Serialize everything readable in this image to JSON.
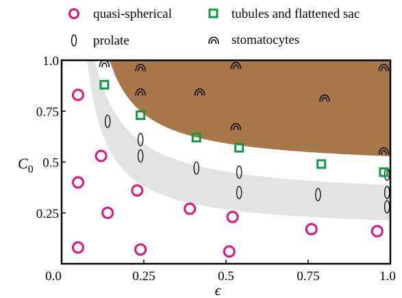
{
  "chart_data": {
    "type": "scatter",
    "xlabel": "ϵ",
    "ylabel": "C",
    "ylabel_subscript": "0",
    "xlim": [
      0.0,
      1.0
    ],
    "ylim": [
      0.0,
      1.0
    ],
    "x_ticks": [
      "0.0",
      "0.25",
      "0.5",
      "0.75",
      "1.0"
    ],
    "y_ticks": [
      "0.25",
      "0.5",
      "0.75",
      "1.0"
    ],
    "legend_placement": "top",
    "legend": {
      "quasi_spherical": "quasi-spherical",
      "prolate": "prolate",
      "tubules": "tubules and flattened sac",
      "stomatocytes": "stomatocytes"
    },
    "colors": {
      "quasi_spherical": "#e0117f",
      "tubules": "#119a3c",
      "stomatocyte_region": "#a8774a",
      "prolate_band": "#e3e3e3"
    },
    "series": [
      {
        "name": "quasi-spherical",
        "marker": "circle",
        "points": [
          [
            0.05,
            0.83
          ],
          [
            0.05,
            0.4
          ],
          [
            0.05,
            0.08
          ],
          [
            0.12,
            0.53
          ],
          [
            0.14,
            0.25
          ],
          [
            0.23,
            0.36
          ],
          [
            0.24,
            0.07
          ],
          [
            0.39,
            0.27
          ],
          [
            0.51,
            0.06
          ],
          [
            0.52,
            0.23
          ],
          [
            0.76,
            0.17
          ],
          [
            0.96,
            0.16
          ]
        ]
      },
      {
        "name": "prolate",
        "marker": "ellipse",
        "points": [
          [
            0.14,
            0.7
          ],
          [
            0.24,
            0.61
          ],
          [
            0.24,
            0.53
          ],
          [
            0.41,
            0.47
          ],
          [
            0.54,
            0.45
          ],
          [
            0.54,
            0.35
          ],
          [
            0.78,
            0.34
          ],
          [
            0.99,
            0.44
          ],
          [
            0.99,
            0.35
          ],
          [
            0.99,
            0.28
          ]
        ]
      },
      {
        "name": "tubules and flattened sac",
        "marker": "square",
        "points": [
          [
            0.13,
            0.88
          ],
          [
            0.24,
            0.73
          ],
          [
            0.41,
            0.62
          ],
          [
            0.54,
            0.57
          ],
          [
            0.79,
            0.49
          ],
          [
            0.98,
            0.45
          ]
        ]
      },
      {
        "name": "stomatocytes",
        "marker": "arch",
        "points": [
          [
            0.13,
            0.98
          ],
          [
            0.24,
            0.96
          ],
          [
            0.24,
            0.84
          ],
          [
            0.42,
            0.84
          ],
          [
            0.53,
            0.97
          ],
          [
            0.53,
            0.67
          ],
          [
            0.8,
            0.81
          ],
          [
            0.98,
            0.96
          ],
          [
            0.98,
            0.55
          ]
        ]
      }
    ]
  }
}
